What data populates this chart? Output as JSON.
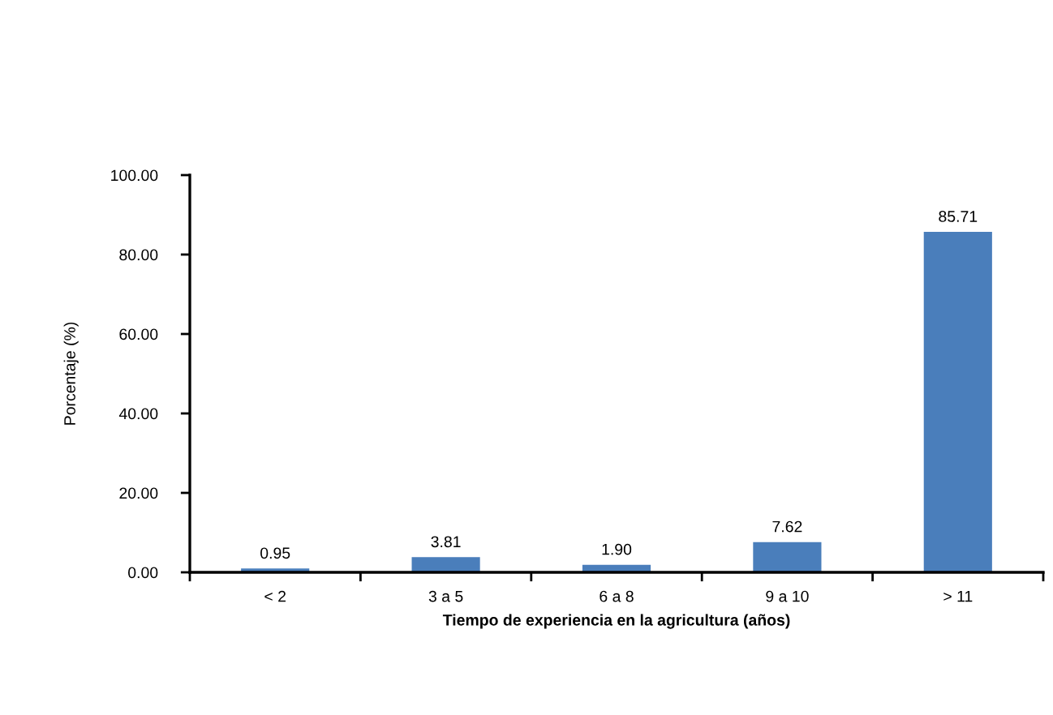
{
  "chart_data": {
    "type": "bar",
    "xlabel": "Tiempo de experiencia en la agricultura (años)",
    "ylabel": "Porcentaje (%)",
    "categories": [
      "< 2",
      "3 a 5",
      "6 a 8",
      "9 a 10",
      "> 11"
    ],
    "values": [
      0.95,
      3.81,
      1.9,
      7.62,
      85.71
    ],
    "color": "#4a7ebb",
    "value_labels": [
      "0.95",
      "3.81",
      "1.90",
      "7.62",
      "85.71"
    ],
    "ylim": [
      0,
      100
    ],
    "yticks": [
      {
        "value": 0,
        "label": "0.00"
      },
      {
        "value": 20,
        "label": "20.00"
      },
      {
        "value": 40,
        "label": "40.00"
      },
      {
        "value": 60,
        "label": "60.00"
      },
      {
        "value": 80,
        "label": "80.00"
      },
      {
        "value": 100,
        "label": "100.00"
      }
    ],
    "grid": false,
    "legend": false
  }
}
